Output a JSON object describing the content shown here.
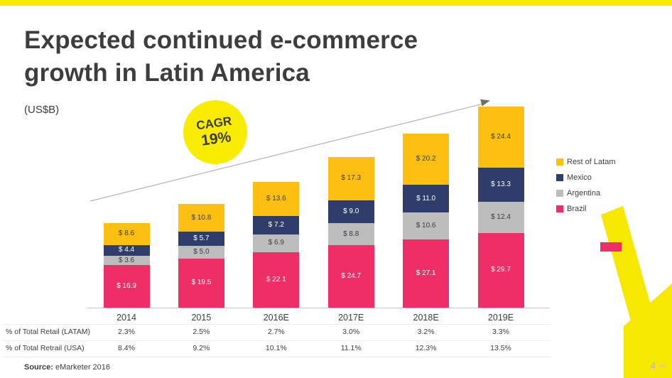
{
  "slide": {
    "title_line1": "Expected continued e-commerce",
    "title_line2": "growth in Latin America",
    "units_label": "(US$B)",
    "cagr_label": "CAGR",
    "cagr_value": "19%",
    "source_label": "Source:",
    "source_text": "eMarketer 2016",
    "page_number": "4"
  },
  "colors": {
    "brazil_pink": "#ed2e67",
    "argentina_gray": "#bdbdbd",
    "mexico_navy": "#2e3d69",
    "rest_of_latam_gold": "#fdc010",
    "accent_yellow": "#f7e800",
    "title_text": "#3d3d3d",
    "trend_line_gray": "#b3b3b3",
    "page_number_gray": "#b5b5b5"
  },
  "chart_data": {
    "type": "bar",
    "stacked": true,
    "unit": "US$B",
    "value_prefix": "$ ",
    "title": "Expected continued e-commerce growth in Latin America",
    "annotation": "CAGR 19%",
    "categories": [
      "2014",
      "2015",
      "2016E",
      "2017E",
      "2018E",
      "2019E"
    ],
    "series": [
      {
        "name": "Brazil",
        "color_key": "brazil_pink",
        "label_color": "#ffffff",
        "values": [
          16.9,
          19.5,
          22.1,
          24.7,
          27.1,
          29.7
        ]
      },
      {
        "name": "Argentina",
        "color_key": "argentina_gray",
        "label_color": "#3d3d3d",
        "values": [
          3.6,
          5.0,
          6.9,
          8.8,
          10.6,
          12.4
        ]
      },
      {
        "name": "Mexico",
        "color_key": "mexico_navy",
        "label_color": "#ffffff",
        "values": [
          4.4,
          5.7,
          7.2,
          9.0,
          11.0,
          13.3
        ]
      },
      {
        "name": "Rest of Latam",
        "color_key": "rest_of_latam_gold",
        "label_color": "#3d3d3d",
        "values": [
          8.6,
          10.8,
          13.6,
          17.3,
          20.2,
          24.4
        ]
      }
    ],
    "legend": [
      {
        "label": "Rest of Latam",
        "color_key": "rest_of_latam_gold"
      },
      {
        "label": "Mexico",
        "color_key": "mexico_navy"
      },
      {
        "label": "Argentina",
        "color_key": "argentina_gray"
      },
      {
        "label": "Brazil",
        "color_key": "brazil_pink"
      }
    ],
    "legend_position": "right",
    "ylim": [
      0,
      80
    ],
    "grid": false
  },
  "table": {
    "rows": [
      {
        "label": "% of Total Retail (LATAM)",
        "values": [
          "2.3%",
          "2.5%",
          "2.7%",
          "3.0%",
          "3.2%",
          "3.3%"
        ]
      },
      {
        "label": "% of Total Retrail (USA)",
        "values": [
          "8.4%",
          "9.2%",
          "10.1%",
          "11.1%",
          "12.3%",
          "13.5%"
        ]
      }
    ]
  }
}
